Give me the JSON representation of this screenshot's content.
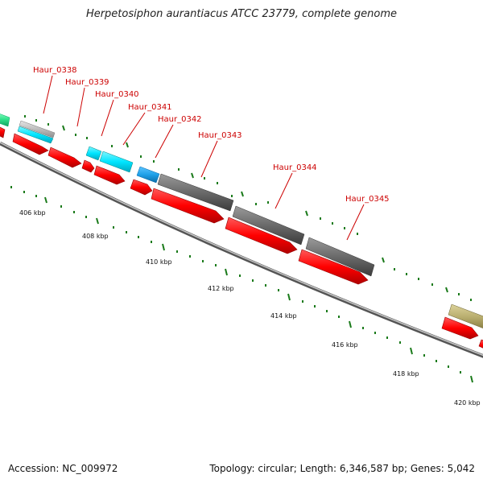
{
  "title": "Herpetosiphon aurantiacus ATCC 23779, complete genome",
  "footer": {
    "accession": "Accession: NC_009972",
    "stats": "Topology: circular; Length: 6,346,587 bp; Genes: 5,042"
  },
  "gene_labels": [
    {
      "id": "Haur_0338",
      "text": "Haur_0338"
    },
    {
      "id": "Haur_0339",
      "text": "Haur_0339"
    },
    {
      "id": "Haur_0340",
      "text": "Haur_0340"
    },
    {
      "id": "Haur_0341",
      "text": "Haur_0341"
    },
    {
      "id": "Haur_0342",
      "text": "Haur_0342"
    },
    {
      "id": "Haur_0343",
      "text": "Haur_0343"
    },
    {
      "id": "Haur_0344",
      "text": "Haur_0344"
    },
    {
      "id": "Haur_0345",
      "text": "Haur_0345"
    }
  ],
  "tick_labels": [
    "406 kbp",
    "408 kbp",
    "410 kbp",
    "412 kbp",
    "414 kbp",
    "416 kbp",
    "418 kbp",
    "420 kbp"
  ],
  "colors": {
    "cds_forward": "#ff0000",
    "backbone": "#888888",
    "tick": "#1a7a1a",
    "label": "#cc0000",
    "cog_cyan": "#00e5ff",
    "cog_blue": "#1ea0e8",
    "cog_gray": "#6a6a6a",
    "cog_silver": "#bdbdbd",
    "cog_green": "#2ee08a",
    "cog_khaki": "#b8ad6e"
  }
}
